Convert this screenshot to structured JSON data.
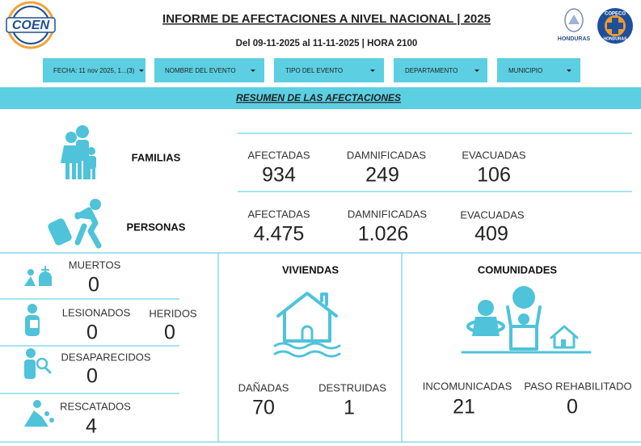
{
  "header": {
    "title": "INFORME DE AFECTACIONES A NIVEL NACIONAL | 2025",
    "subtitle": "Del 09-11-2025 al 11-11-2025 | HORA 2100",
    "logos": [
      "COEN",
      "HONDURAS",
      "COPECO",
      "HONDURAS"
    ]
  },
  "filters": [
    "FECHA: 11 nov 2025, 1...(3)",
    "NOMBRE DEL EVENTO",
    "TIPO DEL EVENTO",
    "DEPARTAMENTO",
    "MUNICIPIO"
  ],
  "banner": "RESUMEN DE LAS AFECTACIONES",
  "families": {
    "label": "FAMILIAS",
    "stats": [
      {
        "label": "AFECTADAS",
        "value": "934"
      },
      {
        "label": "DAMNIFICADAS",
        "value": "249"
      },
      {
        "label": "EVACUADAS",
        "value": "106"
      }
    ]
  },
  "persons": {
    "label": "PERSONAS",
    "stats": [
      {
        "label": "AFECTADAS",
        "value": "4.475"
      },
      {
        "label": "DAMNIFICADAS",
        "value": "1.026"
      },
      {
        "label": "EVACUADAS",
        "value": "409"
      }
    ]
  },
  "incidents": [
    {
      "label": "MUERTOS",
      "value": "0"
    },
    {
      "label": "LESIONADOS",
      "value": "0"
    },
    {
      "label": "HERIDOS",
      "value": "0"
    },
    {
      "label": "DESAPARECIDOS",
      "value": "0"
    },
    {
      "label": "RESCATADOS",
      "value": "4"
    }
  ],
  "housing": {
    "title": "VIVIENDAS",
    "stats": [
      {
        "label": "DAÑADAS",
        "value": "70"
      },
      {
        "label": "DESTRUIDAS",
        "value": "1"
      }
    ]
  },
  "communities": {
    "title": "COMUNIDADES",
    "stats": [
      {
        "label": "INCOMUNICADAS",
        "value": "21"
      },
      {
        "label": "PASO REHABILITADO",
        "value": "0"
      }
    ]
  }
}
